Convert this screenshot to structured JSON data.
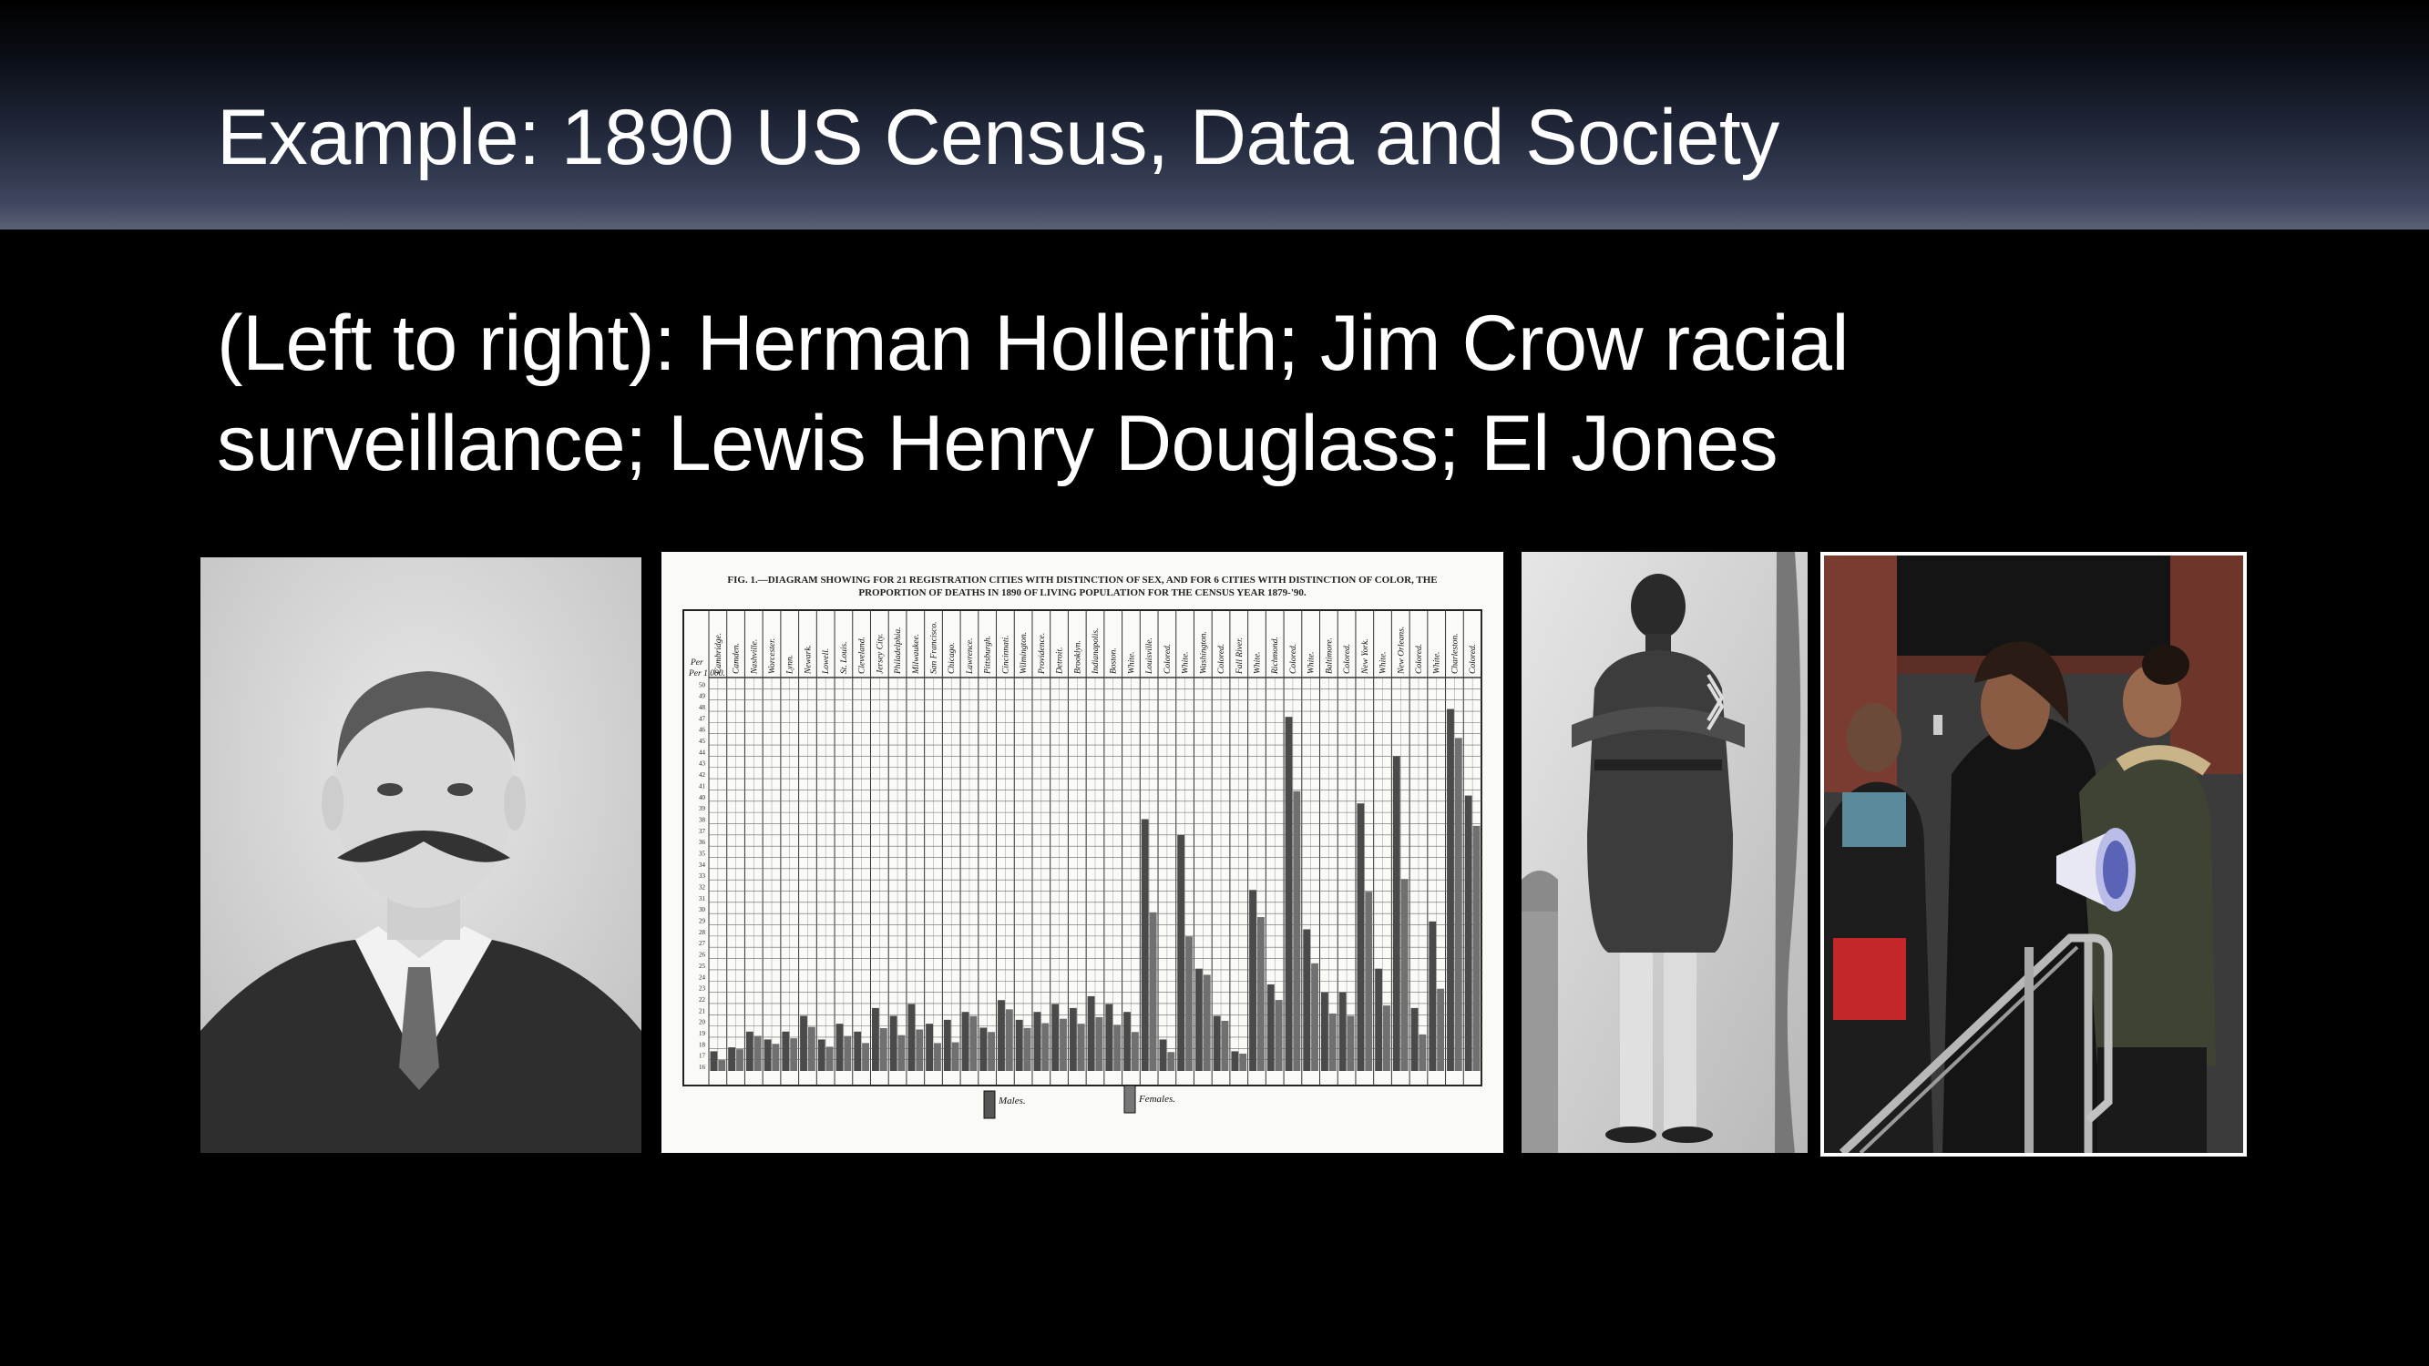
{
  "slide": {
    "title": "Example: 1890 US Census, Data and Society",
    "body": "(Left to right): Herman Hollerith; Jim Crow racial surveillance; Lewis Henry Douglass; El Jones"
  },
  "census_chart": {
    "caption_line1": "FIG. 1.—DIAGRAM SHOWING FOR 21 REGISTRATION CITIES WITH DISTINCTION OF SEX, AND FOR 6 CITIES WITH DISTINCTION OF COLOR, THE",
    "caption_line2": "PROPORTION OF DEATHS IN 1890 OF LIVING POPULATION FOR THE CENSUS YEAR 1879-'90.",
    "per_label": "Per 1,000.",
    "cities": [
      "Cambridge.",
      "Camden.",
      "Nashville.",
      "Worcester.",
      "Lynn.",
      "Newark.",
      "Lowell.",
      "St. Louis.",
      "Cleveland.",
      "Jersey City.",
      "Philadelphia.",
      "Milwaukee.",
      "San Francisco.",
      "Chicago.",
      "Lawrence.",
      "Pittsburgh.",
      "Cincinnati.",
      "Wilmington.",
      "Providence.",
      "Detroit.",
      "Brooklyn.",
      "Indianapolis.",
      "Boston.",
      "White.",
      "Louisville.",
      "Colored.",
      "White.",
      "Washington.",
      "Colored.",
      "Fall River.",
      "White.",
      "Richmond.",
      "Colored.",
      "White.",
      "Baltimore.",
      "Colored.",
      "New York.",
      "White.",
      "New Orleans.",
      "Colored.",
      "White.",
      "Charleston.",
      "Colored."
    ],
    "ticks": [
      "50",
      "49",
      "48",
      "47",
      "46",
      "45",
      "44",
      "43",
      "42",
      "41",
      "40",
      "39",
      "38",
      "37",
      "36",
      "35",
      "34",
      "33",
      "32",
      "31",
      "30",
      "29",
      "28",
      "27",
      "26",
      "25",
      "24",
      "23",
      "22",
      "21",
      "20",
      "19",
      "18",
      "17",
      "16"
    ],
    "legend_males": "Males.",
    "legend_females": "Females."
  }
}
